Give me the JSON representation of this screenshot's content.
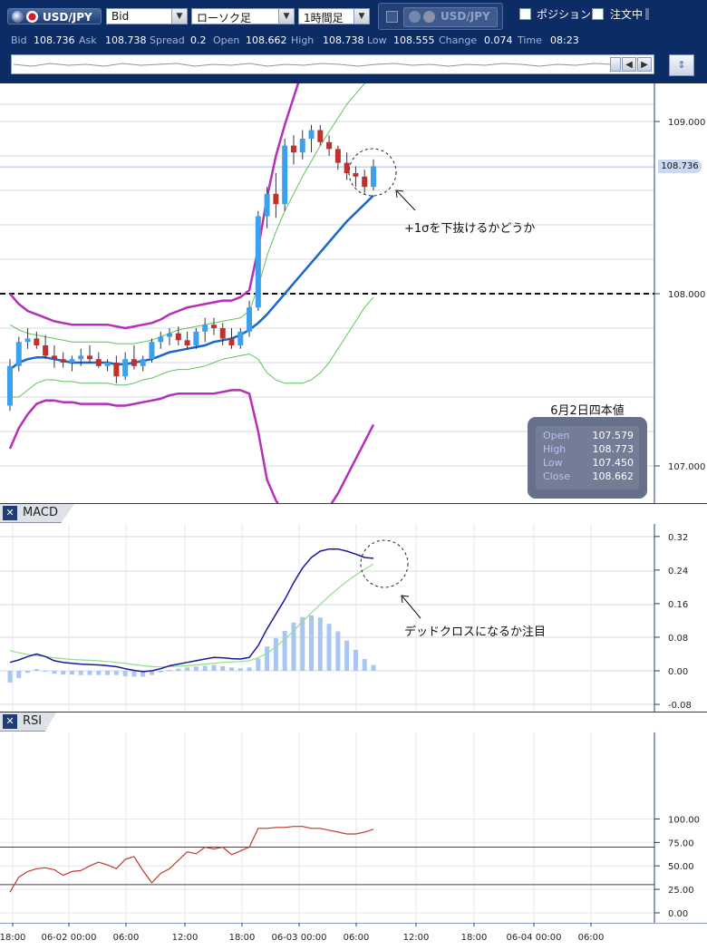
{
  "toolbar": {
    "pair_label": "USD/JPY",
    "price_side": "Bid",
    "chart_type": "ローソク足",
    "timeframe": "1時間足",
    "compare_pair": "USD/JPY",
    "position_label": "ポジション",
    "order_label": "注文中"
  },
  "info": {
    "bid_label": "Bid",
    "bid": "108.736",
    "ask_label": "Ask",
    "ask": "108.738",
    "spread_label": "Spread",
    "spread": "0.2",
    "open_label": "Open",
    "open": "108.662",
    "high_label": "High",
    "high": "108.738",
    "low_label": "Low",
    "low": "108.555",
    "change_label": "Change",
    "change": "0.074",
    "time_label": "Time",
    "time": "08:23"
  },
  "main_axis": {
    "ticks": [
      107.0,
      108.0,
      109.0
    ],
    "tick_labels": [
      "107.000",
      "108.000",
      "109.000"
    ],
    "current_price": "108.736"
  },
  "macd_axis": {
    "tick_labels": [
      "0.32",
      "0.24",
      "0.16",
      "0.08",
      "0.00",
      "-0.08"
    ]
  },
  "rsi_axis": {
    "tick_labels": [
      "100.00",
      "75.00",
      "50.00",
      "25.00",
      "0.00"
    ]
  },
  "x_axis": {
    "labels": [
      "18:00",
      "06-02 00:00",
      "06:00",
      "12:00",
      "18:00",
      "06-03 00:00",
      "06:00",
      "12:00",
      "18:00",
      "06-04 00:00",
      "06:00"
    ]
  },
  "panels": {
    "macd_title": "MACD",
    "rsi_title": "RSI"
  },
  "ohlc_box": {
    "title": "6月2日四本値",
    "rows": [
      {
        "k": "Open",
        "v": "107.579"
      },
      {
        "k": "High",
        "v": "108.773"
      },
      {
        "k": "Low",
        "v": "107.450"
      },
      {
        "k": "Close",
        "v": "108.662"
      }
    ]
  },
  "annotations": {
    "sigma_note": "+1σを下抜けるかどうか",
    "macd_note": "デッドクロスになるか注目"
  },
  "colors": {
    "up_candle": "#3da0ea",
    "down_candle": "#c0312d",
    "bb2_line": "#b52fb8",
    "bb1_line": "#5ec45a",
    "ma_line": "#1a66cc",
    "macd_line": "#18189c",
    "signal_line": "#8de08a",
    "histogram": "#a9c6f0",
    "rsi_line": "#c0392b"
  },
  "chart_data": {
    "type": "line",
    "candles": [
      [
        107.35,
        107.62,
        107.32,
        107.58
      ],
      [
        107.58,
        107.75,
        107.55,
        107.72
      ],
      [
        107.72,
        107.8,
        107.68,
        107.74
      ],
      [
        107.74,
        107.78,
        107.68,
        107.7
      ],
      [
        107.7,
        107.76,
        107.62,
        107.64
      ],
      [
        107.64,
        107.7,
        107.57,
        107.62
      ],
      [
        107.62,
        107.66,
        107.57,
        107.6
      ],
      [
        107.6,
        107.64,
        107.55,
        107.62
      ],
      [
        107.62,
        107.68,
        107.58,
        107.64
      ],
      [
        107.64,
        107.7,
        107.6,
        107.62
      ],
      [
        107.62,
        107.66,
        107.57,
        107.58
      ],
      [
        107.58,
        107.62,
        107.55,
        107.6
      ],
      [
        107.6,
        107.64,
        107.48,
        107.52
      ],
      [
        107.52,
        107.66,
        107.5,
        107.62
      ],
      [
        107.62,
        107.7,
        107.56,
        107.58
      ],
      [
        107.58,
        107.64,
        107.55,
        107.62
      ],
      [
        107.62,
        107.74,
        107.6,
        107.72
      ],
      [
        107.72,
        107.78,
        107.68,
        107.75
      ],
      [
        107.75,
        107.8,
        107.7,
        107.77
      ],
      [
        107.77,
        107.81,
        107.7,
        107.73
      ],
      [
        107.73,
        107.78,
        107.68,
        107.7
      ],
      [
        107.7,
        107.8,
        107.68,
        107.78
      ],
      [
        107.78,
        107.86,
        107.72,
        107.82
      ],
      [
        107.82,
        107.86,
        107.76,
        107.8
      ],
      [
        107.8,
        107.83,
        107.7,
        107.74
      ],
      [
        107.74,
        107.8,
        107.68,
        107.7
      ],
      [
        107.7,
        107.8,
        107.68,
        107.78
      ],
      [
        107.78,
        107.96,
        107.75,
        107.92
      ],
      [
        107.92,
        108.48,
        107.9,
        108.45
      ],
      [
        108.45,
        108.62,
        108.38,
        108.58
      ],
      [
        108.58,
        108.7,
        108.44,
        108.52
      ],
      [
        108.52,
        108.9,
        108.48,
        108.86
      ],
      [
        108.86,
        108.92,
        108.75,
        108.82
      ],
      [
        108.82,
        108.95,
        108.78,
        108.9
      ],
      [
        108.9,
        108.98,
        108.82,
        108.95
      ],
      [
        108.95,
        108.98,
        108.86,
        108.88
      ],
      [
        108.88,
        108.92,
        108.8,
        108.84
      ],
      [
        108.84,
        108.86,
        108.72,
        108.76
      ],
      [
        108.76,
        108.82,
        108.66,
        108.7
      ],
      [
        108.7,
        108.74,
        108.62,
        108.68
      ],
      [
        108.68,
        108.72,
        108.58,
        108.62
      ],
      [
        108.62,
        108.78,
        108.6,
        108.74
      ]
    ],
    "ma": [
      107.56,
      107.6,
      107.62,
      107.63,
      107.63,
      107.62,
      107.61,
      107.6,
      107.6,
      107.6,
      107.6,
      107.6,
      107.59,
      107.59,
      107.6,
      107.61,
      107.62,
      107.64,
      107.66,
      107.67,
      107.68,
      107.69,
      107.7,
      107.72,
      107.73,
      107.74,
      107.76,
      107.79,
      107.83,
      107.88,
      107.94,
      108.0,
      108.06,
      108.12,
      108.18,
      108.24,
      108.3,
      108.36,
      108.42,
      108.47,
      108.52,
      108.57
    ],
    "bb_plus2": [
      108.0,
      107.94,
      107.9,
      107.88,
      107.86,
      107.84,
      107.83,
      107.82,
      107.82,
      107.82,
      107.82,
      107.82,
      107.81,
      107.8,
      107.81,
      107.82,
      107.83,
      107.85,
      107.88,
      107.9,
      107.92,
      107.93,
      107.94,
      107.95,
      107.96,
      107.96,
      107.98,
      108.02,
      108.26,
      108.56,
      108.8,
      108.98,
      109.14,
      109.3,
      109.46,
      109.6,
      109.72,
      109.84,
      109.94,
      110.02,
      110.08,
      110.14
    ],
    "bb_plus1": [
      107.82,
      107.79,
      107.77,
      107.76,
      107.75,
      107.74,
      107.73,
      107.72,
      107.72,
      107.72,
      107.72,
      107.72,
      107.71,
      107.71,
      107.71,
      107.72,
      107.73,
      107.75,
      107.77,
      107.79,
      107.8,
      107.81,
      107.82,
      107.83,
      107.84,
      107.85,
      107.86,
      107.9,
      108.04,
      108.22,
      108.36,
      108.48,
      108.58,
      108.68,
      108.77,
      108.86,
      108.94,
      109.02,
      109.1,
      109.16,
      109.22,
      109.26
    ],
    "bb_minus1": [
      107.4,
      107.4,
      107.44,
      107.48,
      107.5,
      107.5,
      107.49,
      107.49,
      107.48,
      107.48,
      107.48,
      107.48,
      107.47,
      107.47,
      107.48,
      107.5,
      107.51,
      107.53,
      107.55,
      107.56,
      107.56,
      107.57,
      107.58,
      107.6,
      107.62,
      107.63,
      107.64,
      107.65,
      107.62,
      107.54,
      107.5,
      107.48,
      107.48,
      107.48,
      107.5,
      107.54,
      107.6,
      107.68,
      107.76,
      107.84,
      107.92,
      107.98
    ],
    "bb_minus2": [
      107.1,
      107.22,
      107.3,
      107.36,
      107.38,
      107.38,
      107.37,
      107.37,
      107.36,
      107.36,
      107.36,
      107.36,
      107.35,
      107.35,
      107.36,
      107.37,
      107.38,
      107.39,
      107.41,
      107.42,
      107.42,
      107.42,
      107.42,
      107.42,
      107.43,
      107.44,
      107.44,
      107.42,
      107.2,
      106.92,
      106.8,
      106.72,
      106.68,
      106.66,
      106.66,
      106.7,
      106.76,
      106.84,
      106.94,
      107.04,
      107.14,
      107.24
    ],
    "macd": [
      0.02,
      0.026,
      0.034,
      0.04,
      0.034,
      0.024,
      0.02,
      0.018,
      0.016,
      0.015,
      0.014,
      0.012,
      0.01,
      0.005,
      0.001,
      -0.002,
      0.0,
      0.005,
      0.012,
      0.016,
      0.02,
      0.024,
      0.028,
      0.032,
      0.031,
      0.029,
      0.028,
      0.032,
      0.06,
      0.1,
      0.135,
      0.17,
      0.21,
      0.245,
      0.27,
      0.285,
      0.29,
      0.29,
      0.285,
      0.278,
      0.27,
      0.268
    ],
    "signal": [
      0.048,
      0.043,
      0.039,
      0.036,
      0.034,
      0.031,
      0.029,
      0.027,
      0.026,
      0.025,
      0.024,
      0.022,
      0.02,
      0.018,
      0.015,
      0.012,
      0.01,
      0.009,
      0.01,
      0.011,
      0.012,
      0.014,
      0.016,
      0.018,
      0.02,
      0.021,
      0.022,
      0.024,
      0.031,
      0.042,
      0.057,
      0.075,
      0.095,
      0.117,
      0.138,
      0.158,
      0.178,
      0.196,
      0.213,
      0.228,
      0.242,
      0.254
    ],
    "hist": [
      -0.028,
      -0.017,
      -0.005,
      0.004,
      0.0,
      -0.007,
      -0.009,
      -0.009,
      -0.01,
      -0.01,
      -0.01,
      -0.01,
      -0.01,
      -0.013,
      -0.014,
      -0.014,
      -0.01,
      -0.004,
      0.002,
      0.005,
      0.008,
      0.01,
      0.012,
      0.014,
      0.011,
      0.008,
      0.006,
      0.008,
      0.029,
      0.058,
      0.078,
      0.095,
      0.115,
      0.128,
      0.132,
      0.127,
      0.112,
      0.094,
      0.072,
      0.05,
      0.028,
      0.014
    ],
    "rsi": [
      22,
      38,
      44,
      47,
      48,
      46,
      40,
      44,
      45,
      50,
      54,
      51,
      47,
      57,
      60,
      45,
      32,
      42,
      47,
      56,
      65,
      63,
      70,
      68,
      70,
      62,
      66,
      70,
      90,
      90,
      91,
      91,
      92,
      92,
      90,
      90,
      88,
      86,
      84,
      84,
      86,
      89
    ],
    "rsi_levels": [
      30,
      70
    ],
    "main_ylim": [
      106.8,
      109.2
    ],
    "macd_ylim": [
      -0.08,
      0.32
    ],
    "rsi_ylim": [
      0,
      100
    ],
    "dashed_level": 108.0
  }
}
